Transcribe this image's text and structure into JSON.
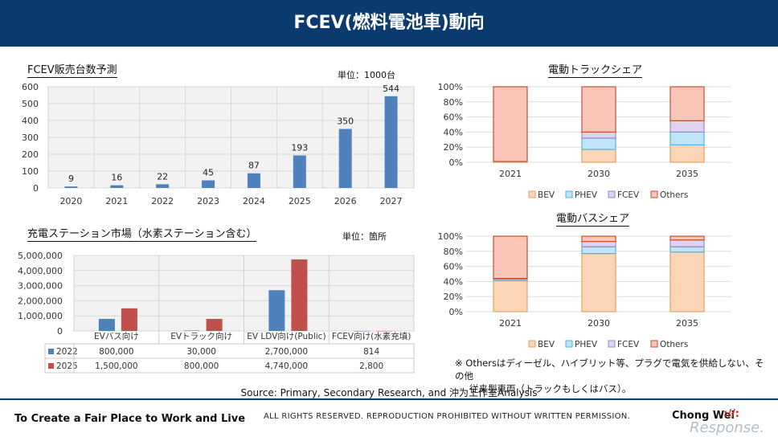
{
  "header": {
    "title": "FCEV(燃料電池車)動向"
  },
  "panels": {
    "sales": {
      "title": "FCEV販売台数予測",
      "unit": "単位：1000台"
    },
    "stations": {
      "title": "充電ステーション市場（水素ステーション含む）",
      "unit": "単位：箇所"
    },
    "truck": {
      "title": "電動トラックシェア"
    },
    "bus": {
      "title": "電動バスシェア"
    }
  },
  "note": [
    "※ Othersはディーゼル、ハイブリット等、プラグで電気を供給しない、その他",
    "従来型車両（トラックもしくはバス）。"
  ],
  "source": "Source: Primary, Secondary Research, and 沖为工作室Analysis",
  "footer": {
    "tagline": "To Create a Fair Place to Work and Live",
    "rights": "ALL RIGHTS RESERVED. REPRODUCTION PROHIBITED WITHOUT WRITTEN PERMISSION.",
    "brand": "Chong Wei",
    "brand_mark": "://:",
    "watermark": "Response."
  },
  "colors": {
    "header_bg": "#0b3a6f",
    "blue_bar": "#4f81bd",
    "red_bar": "#c0504d",
    "bev": "#fbd5b5",
    "phev": "#bfe4f7",
    "fcev": "#ddd3ee",
    "others": "#fbc6b8",
    "edge": "#c07a40"
  },
  "chart_data": [
    {
      "type": "bar",
      "categories": [
        "2020",
        "2021",
        "2022",
        "2023",
        "2024",
        "2025",
        "2026",
        "2027"
      ],
      "values": [
        9,
        16,
        22,
        45,
        87,
        193,
        350,
        544
      ],
      "ylim": [
        0,
        600
      ],
      "yticks": [
        0,
        100,
        200,
        300,
        400,
        500,
        600
      ],
      "grid": true
    },
    {
      "type": "bar",
      "categories": [
        "EVバス向け",
        "EVトラック向け",
        "EV LDV向け(Public)",
        "FCEV向け(水素充填)"
      ],
      "series": [
        {
          "name": "2022",
          "values": [
            800000,
            30000,
            2700000,
            814
          ],
          "labels": [
            "800,000",
            "30,000",
            "2,700,000",
            "814"
          ]
        },
        {
          "name": "2025",
          "values": [
            1500000,
            800000,
            4740000,
            2800
          ],
          "labels": [
            "1,500,000",
            "800,000",
            "4,740,000",
            "2,800"
          ]
        }
      ],
      "ylim": [
        0,
        5000000
      ],
      "yticks": [
        "0",
        "1,000,000",
        "2,000,000",
        "3,000,000",
        "4,000,000",
        "5,000,000"
      ],
      "grid": true,
      "data_table": true
    },
    {
      "type": "bar",
      "stacked": true,
      "categories": [
        "2021",
        "2030",
        "2035"
      ],
      "series": [
        {
          "name": "BEV",
          "values": [
            1,
            17,
            23
          ]
        },
        {
          "name": "PHEV",
          "values": [
            0,
            15,
            17
          ]
        },
        {
          "name": "FCEV",
          "values": [
            0,
            8,
            15
          ]
        },
        {
          "name": "Others",
          "values": [
            99,
            60,
            45
          ]
        }
      ],
      "ylim": [
        0,
        100
      ],
      "yticks": [
        "0%",
        "20%",
        "40%",
        "60%",
        "80%",
        "100%"
      ],
      "legend": "bottom"
    },
    {
      "type": "bar",
      "stacked": true,
      "categories": [
        "2021",
        "2030",
        "2035"
      ],
      "series": [
        {
          "name": "BEV",
          "values": [
            41,
            77,
            79
          ]
        },
        {
          "name": "PHEV",
          "values": [
            2,
            9,
            7
          ]
        },
        {
          "name": "FCEV",
          "values": [
            1,
            7,
            9
          ]
        },
        {
          "name": "Others",
          "values": [
            56,
            7,
            5
          ]
        }
      ],
      "ylim": [
        0,
        100
      ],
      "yticks": [
        "0%",
        "20%",
        "40%",
        "60%",
        "80%",
        "100%"
      ],
      "legend": "bottom"
    }
  ]
}
